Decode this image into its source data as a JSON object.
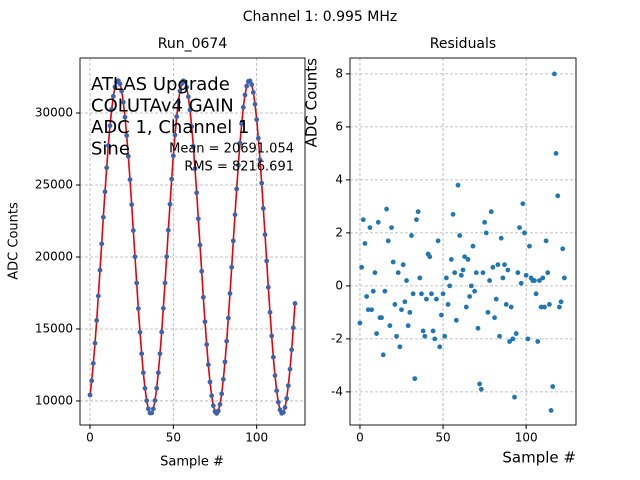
{
  "suptitle": "Channel 1: 0.995 MHz",
  "chart_data": [
    {
      "type": "scatter",
      "title": "Run_0674",
      "xlabel": "Sample #",
      "ylabel": "ADC Counts",
      "annotations": [
        "ATLAS Upgrade",
        "COLUTAv4 GAIN",
        "ADC 1, Channel 1",
        "Sine",
        "Mean = 20691.054",
        "RMS = 8216.691"
      ],
      "color": "#3f62b0",
      "line_color": "#e8000b",
      "grid": true,
      "xlim": [
        -6,
        129
      ],
      "ylim": [
        8330,
        33820
      ],
      "xticks": [
        0,
        50,
        100
      ],
      "yticks": [
        10000,
        15000,
        20000,
        25000,
        30000
      ],
      "x": [
        0,
        1,
        2,
        3,
        4,
        5,
        6,
        7,
        8,
        9,
        10,
        11,
        12,
        13,
        14,
        15,
        16,
        17,
        18,
        19,
        20,
        21,
        22,
        23,
        24,
        25,
        26,
        27,
        28,
        29,
        30,
        31,
        32,
        33,
        34,
        35,
        36,
        37,
        38,
        39,
        40,
        41,
        42,
        43,
        44,
        45,
        46,
        47,
        48,
        49,
        50,
        51,
        52,
        53,
        54,
        55,
        56,
        57,
        58,
        59,
        60,
        61,
        62,
        63,
        64,
        65,
        66,
        67,
        68,
        69,
        70,
        71,
        72,
        73,
        74,
        75,
        76,
        77,
        78,
        79,
        80,
        81,
        82,
        83,
        84,
        85,
        86,
        87,
        88,
        89,
        90,
        91,
        92,
        93,
        94,
        95,
        96,
        97,
        98,
        99,
        100,
        101,
        102,
        103,
        104,
        105,
        106,
        107,
        108,
        109,
        110,
        111,
        112,
        113,
        114,
        115,
        116,
        117,
        118,
        119,
        120,
        121,
        122,
        123
      ],
      "values": [
        10414,
        11397,
        12611,
        14009,
        15593,
        17292,
        19084,
        20911,
        22760,
        24529,
        26205,
        27743,
        29107,
        30251,
        31164,
        31812,
        32170,
        32239,
        32020,
        31523,
        30748,
        29708,
        28436,
        26991,
        25373,
        23639,
        21835,
        20009,
        18194,
        16414,
        14772,
        13281,
        11963,
        10877,
        10021,
        9455,
        9166,
        9166,
        9455,
        10033,
        10877,
        11963,
        13281,
        14784,
        16437,
        18194,
        20021,
        21859,
        23662,
        25408,
        27026,
        28471,
        29743,
        30760,
        31534,
        32031,
        32239,
        32158,
        31789,
        31130,
        30216,
        29060,
        27685,
        26136,
        24460,
        22656,
        20830,
        19003,
        17200,
        15501,
        13917,
        12518,
        11316,
        10368,
        9674,
        9258,
        9131,
        9304,
        9755,
        10495,
        11501,
        12715,
        14148,
        15755,
        17466,
        19281,
        21119,
        22934,
        24725,
        26378,
        27916,
        29257,
        30390,
        31257,
        31870,
        32193,
        32228,
        31974,
        31430,
        30609,
        29546,
        28251,
        26760,
        25130,
        23373,
        21558,
        19720,
        17893,
        16159,
        14518,
        13038,
        11767,
        10715,
        9905,
        9385,
        9143,
        9200,
        9547,
        10171,
        11062,
        12206,
        13558,
        15084,
        16772
      ]
    },
    {
      "type": "scatter",
      "title": "Residuals",
      "xlabel": "Sample #",
      "ylabel": "ADC Counts",
      "color": "#1f77b4",
      "grid": true,
      "xlim": [
        -6,
        130
      ],
      "ylim": [
        -5.25,
        8.6
      ],
      "xticks": [
        0,
        50,
        100
      ],
      "yticks": [
        -4,
        -2,
        0,
        2,
        4,
        6,
        8
      ],
      "x": [
        0,
        1,
        2,
        3,
        4,
        5,
        6,
        7,
        8,
        9,
        10,
        11,
        12,
        13,
        14,
        15,
        16,
        17,
        18,
        19,
        20,
        21,
        22,
        23,
        24,
        25,
        26,
        27,
        28,
        29,
        30,
        31,
        32,
        33,
        34,
        35,
        36,
        37,
        38,
        39,
        40,
        41,
        42,
        43,
        44,
        45,
        46,
        47,
        48,
        49,
        50,
        51,
        52,
        53,
        54,
        55,
        56,
        57,
        58,
        59,
        60,
        61,
        62,
        63,
        64,
        65,
        66,
        67,
        68,
        69,
        70,
        71,
        72,
        73,
        74,
        75,
        76,
        77,
        78,
        79,
        80,
        81,
        82,
        83,
        84,
        85,
        86,
        87,
        88,
        89,
        90,
        91,
        92,
        93,
        94,
        95,
        96,
        97,
        98,
        99,
        100,
        101,
        102,
        103,
        104,
        105,
        106,
        107,
        108,
        109,
        110,
        111,
        112,
        113,
        114,
        115,
        116,
        117,
        118,
        119,
        120,
        121,
        122,
        123
      ],
      "values": [
        -1.4,
        0.7,
        2.5,
        1.6,
        -0.4,
        -0.9,
        2.2,
        -0.9,
        -0.2,
        0.5,
        -1.8,
        2.4,
        -1.2,
        -1.2,
        -2.6,
        -0.2,
        2.9,
        1.7,
        -1.5,
        2.2,
        0.9,
        -0.7,
        -1.9,
        0.5,
        -2.3,
        -0.9,
        0.8,
        -0.6,
        0.2,
        -1.5,
        -1.0,
        1.9,
        -0.3,
        -3.5,
        2.5,
        2.8,
        0.3,
        -0.3,
        -1.7,
        -1.9,
        -0.5,
        1.2,
        1.1,
        -0.3,
        -1.7,
        -2.0,
        -0.5,
        1.7,
        -2.3,
        -1.1,
        -0.3,
        -1.9,
        0.3,
        -0.7,
        0.0,
        1.0,
        2.7,
        0.5,
        -1.3,
        3.8,
        1.9,
        0.4,
        0.6,
        1.1,
        -0.8,
        1.0,
        -0.4,
        0.0,
        1.5,
        -0.2,
        0.5,
        -1.6,
        -3.7,
        -3.9,
        0.5,
        2.4,
        2.0,
        -1.0,
        0.2,
        2.8,
        0.7,
        -1.2,
        -0.5,
        0.8,
        -1.9,
        1.8,
        0.3,
        0.8,
        -0.7,
        0.6,
        -2.1,
        -0.8,
        -2.0,
        -4.2,
        -1.8,
        0.5,
        2.2,
        0.1,
        3.1,
        2.0,
        0.4,
        -2.0,
        1.5,
        0.3,
        0.2,
        0.2,
        -0.3,
        -2.1,
        0.2,
        -0.8,
        0.3,
        -0.8,
        1.7,
        0.5,
        -0.7,
        -4.7,
        -3.8,
        8.0,
        5.0,
        3.4,
        -0.8,
        -0.6,
        1.4,
        0.3
      ]
    }
  ]
}
